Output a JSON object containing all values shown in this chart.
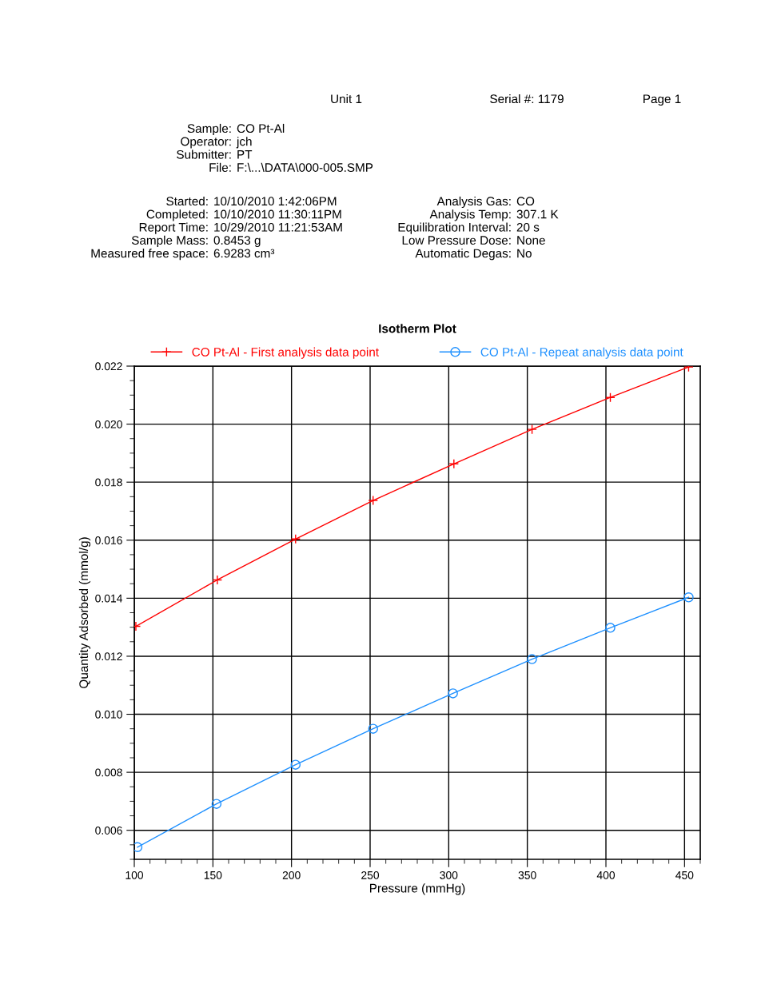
{
  "chart_data": {
    "type": "line",
    "title": "Isotherm Plot",
    "xlabel": "Pressure (mmHg)",
    "ylabel": "Quantity Adsorbed (mmol/g)",
    "annotations": [
      "Unit 1",
      "Serial #: 1179",
      "Page 1",
      "Sample: CO Pt-Al",
      "Operator: jch",
      "Submitter: PT",
      "File: F:\\...\\DATA\\000-005.SMP",
      "Started: 10/10/2010 1:42:06PM",
      "Completed: 10/10/2010 11:30:11PM",
      "Report Time: 10/29/2010 11:21:53AM",
      "Sample Mass: 0.8453 g",
      "Measured free space: 6.9283 cm³",
      "Analysis Gas: CO",
      "Analysis Temp: 307.1 K",
      "Equilibration Interval: 20 s",
      "Low Pressure Dose: None",
      "Automatic Degas: No"
    ],
    "series": [
      {
        "name": "CO Pt-Al - First analysis data point",
        "color": "#ff0000",
        "marker": "cross",
        "x": [
          101,
          152.8,
          202.6,
          251.9,
          303.3,
          353.0,
          402.8,
          452.6
        ],
        "values": [
          0.01303,
          0.01463,
          0.01604,
          0.01737,
          0.01863,
          0.01982,
          0.02092,
          0.02197
        ]
      },
      {
        "name": "CO Pt-Al - Repeat analysis data point",
        "color": "#1e90ff",
        "marker": "circle",
        "x": [
          102.0,
          152.3,
          202.6,
          251.9,
          302.7,
          353.0,
          402.8,
          452.6
        ],
        "values": [
          0.00542,
          0.00691,
          0.00826,
          0.0095,
          0.01072,
          0.0119,
          0.01298,
          0.01403
        ]
      }
    ],
    "xlim": [
      100,
      460
    ],
    "xticks": [
      100,
      150,
      200,
      250,
      300,
      350,
      400,
      450
    ],
    "ylim": [
      0.005,
      0.022
    ],
    "yticks": [
      {
        "value": 0.006,
        "label": "0.006"
      },
      {
        "value": 0.008,
        "label": "0.008"
      },
      {
        "value": 0.01,
        "label": "0.010"
      },
      {
        "value": 0.012,
        "label": "0.012"
      },
      {
        "value": 0.014,
        "label": "0.014"
      },
      {
        "value": 0.016,
        "label": "0.016"
      },
      {
        "value": 0.018,
        "label": "0.018"
      },
      {
        "value": 0.02,
        "label": "0.020"
      },
      {
        "value": 0.022,
        "label": "0.022"
      }
    ],
    "grid": true,
    "legend": "top",
    "line_style": "solid"
  }
}
